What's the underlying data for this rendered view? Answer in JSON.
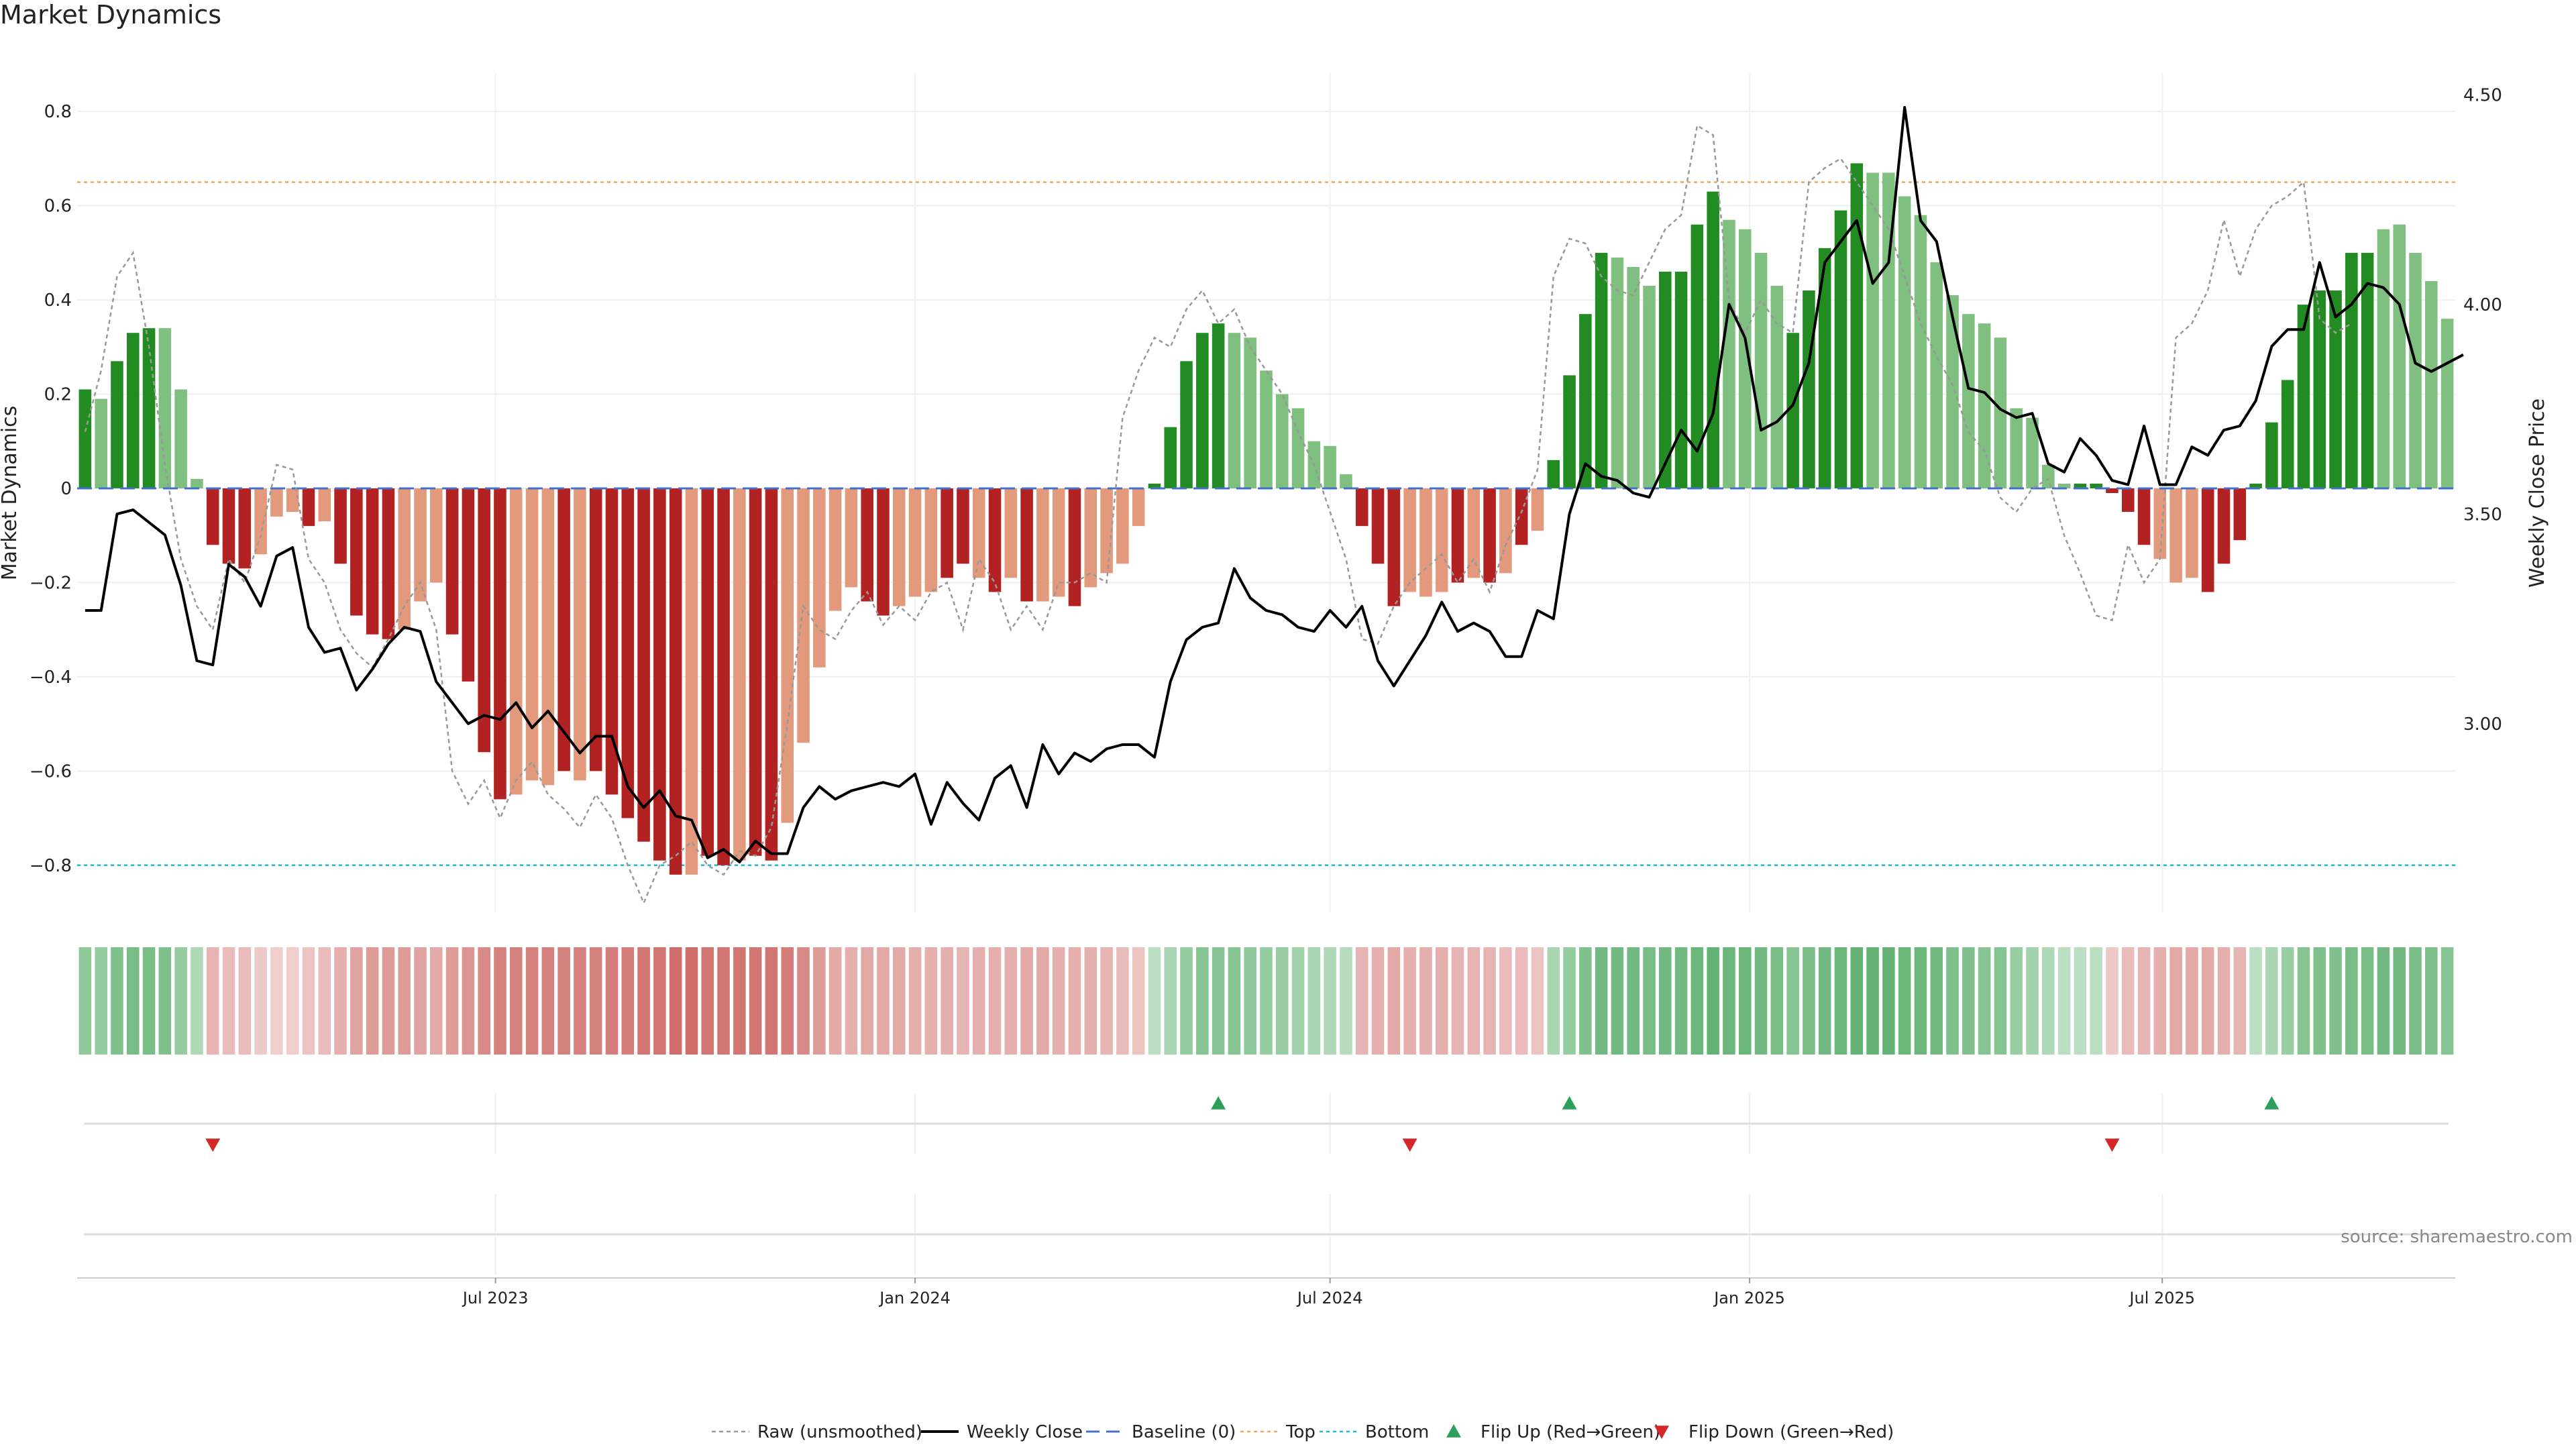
{
  "chart_data": {
    "type": "bar",
    "title": "Market Dynamics",
    "ylabel_left": "Market Dynamics",
    "ylabel_right": "Weekly Close Price",
    "source_note": "source: sharemaestro.com",
    "ylim_left": [
      -0.9,
      0.88
    ],
    "ylim_right": [
      2.55,
      4.55
    ],
    "yticks_left": [
      0.8,
      0.6,
      0.4,
      0.2,
      0,
      -0.2,
      -0.4,
      -0.6,
      -0.8
    ],
    "yticks_left_labels": [
      "0.8",
      "0.6",
      "0.4",
      "0.2",
      "0",
      "−0.2",
      "−0.4",
      "−0.6",
      "−0.8"
    ],
    "yticks_right": [
      4.5,
      4.0,
      3.5,
      3.0
    ],
    "yticks_right_labels": [
      "4.50",
      "4.00",
      "3.50",
      "3.00"
    ],
    "x_start": "2023-01-02",
    "x_end": "2025-10-27",
    "xticks": [
      {
        "date": "2023-07-01",
        "label": "Jul 2023"
      },
      {
        "date": "2024-01-01",
        "label": "Jan 2024"
      },
      {
        "date": "2024-07-01",
        "label": "Jul 2024"
      },
      {
        "date": "2025-01-01",
        "label": "Jan 2025"
      },
      {
        "date": "2025-07-01",
        "label": "Jul 2025"
      }
    ],
    "top_level": 0.65,
    "bottom_level": -0.8,
    "baseline": 0,
    "colors": {
      "strong_up": "#228b22",
      "weak_up": "#7fbf7f",
      "strong_down": "#b22222",
      "weak_down": "#e39a7c",
      "close_line": "#000000",
      "raw_line": "#999999",
      "baseline": "#4472c4",
      "top": "#f0a860",
      "bottom": "#17becf",
      "flip_up": "#2ca05a",
      "flip_down": "#d62728"
    },
    "smoothed": [
      0.21,
      0.19,
      0.27,
      0.33,
      0.34,
      0.34,
      0.21,
      0.02,
      -0.12,
      -0.16,
      -0.17,
      -0.14,
      -0.06,
      -0.05,
      -0.08,
      -0.07,
      -0.16,
      -0.27,
      -0.31,
      -0.32,
      -0.3,
      -0.24,
      -0.2,
      -0.31,
      -0.41,
      -0.56,
      -0.66,
      -0.65,
      -0.62,
      -0.63,
      -0.6,
      -0.62,
      -0.6,
      -0.65,
      -0.7,
      -0.75,
      -0.79,
      -0.82,
      -0.82,
      -0.78,
      -0.8,
      -0.79,
      -0.78,
      -0.79,
      -0.71,
      -0.54,
      -0.38,
      -0.26,
      -0.21,
      -0.24,
      -0.27,
      -0.25,
      -0.23,
      -0.22,
      -0.19,
      -0.16,
      -0.19,
      -0.22,
      -0.19,
      -0.24,
      -0.24,
      -0.23,
      -0.25,
      -0.21,
      -0.18,
      -0.16,
      -0.08,
      0.01,
      0.13,
      0.27,
      0.33,
      0.35,
      0.33,
      0.32,
      0.25,
      0.2,
      0.17,
      0.1,
      0.09,
      0.03,
      -0.08,
      -0.16,
      -0.25,
      -0.22,
      -0.23,
      -0.22,
      -0.2,
      -0.19,
      -0.2,
      -0.18,
      -0.12,
      -0.09,
      0.06,
      0.24,
      0.37,
      0.5,
      0.49,
      0.47,
      0.43,
      0.46,
      0.46,
      0.56,
      0.63,
      0.57,
      0.55,
      0.5,
      0.43,
      0.33,
      0.42,
      0.51,
      0.59,
      0.69,
      0.67,
      0.67,
      0.62,
      0.58,
      0.48,
      0.41,
      0.37,
      0.35,
      0.32,
      0.17,
      0.15,
      0.05,
      0.01,
      0.01,
      0.01,
      -0.01,
      -0.05,
      -0.12,
      -0.15,
      -0.2,
      -0.19,
      -0.22,
      -0.16,
      -0.11,
      0.01,
      0.14,
      0.23,
      0.39,
      0.42,
      0.42,
      0.5,
      0.5,
      0.55,
      0.56,
      0.5,
      0.44,
      0.36
    ],
    "strong": [
      1,
      0,
      1,
      1,
      1,
      0,
      0,
      0,
      1,
      1,
      1,
      0,
      0,
      0,
      1,
      0,
      1,
      1,
      1,
      1,
      0,
      0,
      0,
      1,
      1,
      1,
      1,
      0,
      0,
      0,
      1,
      0,
      1,
      1,
      1,
      1,
      1,
      1,
      0,
      1,
      1,
      0,
      1,
      1,
      0,
      0,
      0,
      0,
      0,
      1,
      1,
      0,
      0,
      0,
      1,
      1,
      0,
      1,
      0,
      1,
      0,
      0,
      1,
      0,
      0,
      0,
      0,
      1,
      1,
      1,
      1,
      1,
      0,
      0,
      0,
      0,
      0,
      0,
      0,
      0,
      1,
      1,
      1,
      0,
      0,
      0,
      1,
      0,
      1,
      0,
      1,
      0,
      1,
      1,
      1,
      1,
      0,
      0,
      0,
      1,
      1,
      1,
      1,
      0,
      0,
      0,
      0,
      1,
      1,
      1,
      1,
      1,
      0,
      0,
      0,
      0,
      0,
      0,
      0,
      0,
      0,
      0,
      0,
      0,
      0,
      1,
      1,
      1,
      1,
      1,
      0,
      0,
      0,
      1,
      1,
      1,
      1,
      1,
      1,
      1,
      1,
      1,
      1,
      1,
      0,
      0,
      0
    ],
    "raw": [
      0.12,
      0.25,
      0.45,
      0.5,
      0.3,
      0.05,
      -0.15,
      -0.25,
      -0.3,
      -0.15,
      -0.2,
      -0.1,
      0.05,
      0.04,
      -0.15,
      -0.2,
      -0.3,
      -0.35,
      -0.38,
      -0.32,
      -0.25,
      -0.2,
      -0.3,
      -0.6,
      -0.67,
      -0.62,
      -0.7,
      -0.62,
      -0.58,
      -0.65,
      -0.68,
      -0.72,
      -0.65,
      -0.7,
      -0.8,
      -0.88,
      -0.8,
      -0.78,
      -0.75,
      -0.8,
      -0.82,
      -0.77,
      -0.78,
      -0.72,
      -0.5,
      -0.25,
      -0.3,
      -0.32,
      -0.26,
      -0.22,
      -0.29,
      -0.25,
      -0.28,
      -0.22,
      -0.2,
      -0.3,
      -0.15,
      -0.2,
      -0.3,
      -0.25,
      -0.3,
      -0.2,
      -0.2,
      -0.18,
      -0.2,
      0.15,
      0.25,
      0.32,
      0.3,
      0.38,
      0.42,
      0.35,
      0.38,
      0.3,
      0.25,
      0.2,
      0.12,
      0.05,
      -0.05,
      -0.15,
      -0.32,
      -0.33,
      -0.25,
      -0.2,
      -0.17,
      -0.14,
      -0.2,
      -0.15,
      -0.22,
      -0.12,
      -0.05,
      0.04,
      0.45,
      0.53,
      0.52,
      0.45,
      0.42,
      0.41,
      0.48,
      0.55,
      0.58,
      0.77,
      0.75,
      0.4,
      0.33,
      0.4,
      0.35,
      0.33,
      0.65,
      0.68,
      0.7,
      0.65,
      0.6,
      0.55,
      0.45,
      0.35,
      0.28,
      0.22,
      0.12,
      0.08,
      -0.02,
      -0.05,
      0.0,
      0.02,
      -0.1,
      -0.18,
      -0.27,
      -0.28,
      -0.12,
      -0.2,
      -0.15,
      0.32,
      0.35,
      0.42,
      0.57,
      0.45,
      0.55,
      0.6,
      0.62,
      0.65,
      0.36,
      0.33,
      0.35
    ],
    "close": [
      3.27,
      3.27,
      3.5,
      3.51,
      3.48,
      3.45,
      3.33,
      3.15,
      3.14,
      3.38,
      3.35,
      3.28,
      3.4,
      3.42,
      3.23,
      3.17,
      3.18,
      3.08,
      3.13,
      3.19,
      3.23,
      3.22,
      3.1,
      3.05,
      3.0,
      3.02,
      3.01,
      3.05,
      2.99,
      3.03,
      2.98,
      2.93,
      2.97,
      2.97,
      2.85,
      2.8,
      2.84,
      2.78,
      2.77,
      2.68,
      2.7,
      2.67,
      2.72,
      2.69,
      2.69,
      2.8,
      2.85,
      2.82,
      2.84,
      2.85,
      2.86,
      2.85,
      2.88,
      2.76,
      2.86,
      2.81,
      2.77,
      2.87,
      2.9,
      2.8,
      2.95,
      2.88,
      2.93,
      2.91,
      2.94,
      2.95,
      2.95,
      2.92,
      3.1,
      3.2,
      3.23,
      3.24,
      3.37,
      3.3,
      3.27,
      3.26,
      3.23,
      3.22,
      3.27,
      3.23,
      3.28,
      3.15,
      3.09,
      3.15,
      3.21,
      3.29,
      3.22,
      3.24,
      3.22,
      3.16,
      3.16,
      3.27,
      3.25,
      3.5,
      3.62,
      3.59,
      3.58,
      3.55,
      3.54,
      3.62,
      3.7,
      3.65,
      3.74,
      4.0,
      3.92,
      3.7,
      3.72,
      3.76,
      3.86,
      4.1,
      4.15,
      4.2,
      4.05,
      4.1,
      4.47,
      4.2,
      4.15,
      3.97,
      3.8,
      3.79,
      3.75,
      3.73,
      3.74,
      3.62,
      3.6,
      3.68,
      3.64,
      3.58,
      3.57,
      3.71,
      3.57,
      3.57,
      3.66,
      3.64,
      3.7,
      3.71,
      3.77,
      3.9,
      3.94,
      3.94,
      4.1,
      3.97,
      4.0,
      4.05,
      4.04,
      4.0,
      3.86,
      3.84,
      3.86,
      3.88
    ],
    "strip_intensity": [
      0.55,
      0.5,
      0.65,
      0.7,
      0.7,
      0.65,
      0.5,
      0.3,
      0.35,
      0.3,
      0.3,
      0.2,
      0.15,
      0.15,
      0.25,
      0.3,
      0.4,
      0.5,
      0.55,
      0.55,
      0.55,
      0.5,
      0.45,
      0.55,
      0.6,
      0.7,
      0.75,
      0.75,
      0.75,
      0.75,
      0.75,
      0.75,
      0.75,
      0.8,
      0.8,
      0.85,
      0.85,
      0.9,
      0.9,
      0.85,
      0.85,
      0.85,
      0.85,
      0.85,
      0.8,
      0.7,
      0.55,
      0.45,
      0.4,
      0.45,
      0.45,
      0.45,
      0.4,
      0.4,
      0.4,
      0.35,
      0.4,
      0.4,
      0.4,
      0.45,
      0.45,
      0.4,
      0.4,
      0.4,
      0.35,
      0.3,
      0.25,
      0.2,
      0.35,
      0.5,
      0.6,
      0.6,
      0.6,
      0.55,
      0.5,
      0.45,
      0.4,
      0.35,
      0.3,
      0.25,
      0.35,
      0.4,
      0.45,
      0.4,
      0.4,
      0.4,
      0.35,
      0.35,
      0.35,
      0.3,
      0.3,
      0.25,
      0.35,
      0.5,
      0.65,
      0.75,
      0.75,
      0.75,
      0.7,
      0.75,
      0.75,
      0.8,
      0.85,
      0.8,
      0.8,
      0.75,
      0.7,
      0.6,
      0.7,
      0.75,
      0.8,
      0.85,
      0.85,
      0.85,
      0.8,
      0.8,
      0.75,
      0.65,
      0.65,
      0.6,
      0.6,
      0.45,
      0.4,
      0.3,
      0.2,
      0.2,
      0.2,
      0.2,
      0.3,
      0.35,
      0.4,
      0.45,
      0.45,
      0.45,
      0.4,
      0.35,
      0.2,
      0.35,
      0.45,
      0.6,
      0.65,
      0.65,
      0.7,
      0.7,
      0.75,
      0.75,
      0.7,
      0.65,
      0.6
    ],
    "flips_up": [
      {
        "date": "2024-05-13"
      },
      {
        "date": "2024-10-14"
      },
      {
        "date": "2025-08-18"
      }
    ],
    "flips_down": [
      {
        "date": "2023-02-27"
      },
      {
        "date": "2024-08-05"
      },
      {
        "date": "2025-06-09"
      }
    ],
    "legend": [
      {
        "key": "raw",
        "label": "Raw (unsmoothed)"
      },
      {
        "key": "close",
        "label": "Weekly Close"
      },
      {
        "key": "baseline",
        "label": "Baseline (0)"
      },
      {
        "key": "top",
        "label": "Top"
      },
      {
        "key": "bottom",
        "label": "Bottom"
      },
      {
        "key": "flip_up",
        "label": "Flip Up (Red→Green)"
      },
      {
        "key": "flip_down",
        "label": "Flip Down (Green→Red)"
      }
    ],
    "legend_position": "bottom-center"
  }
}
